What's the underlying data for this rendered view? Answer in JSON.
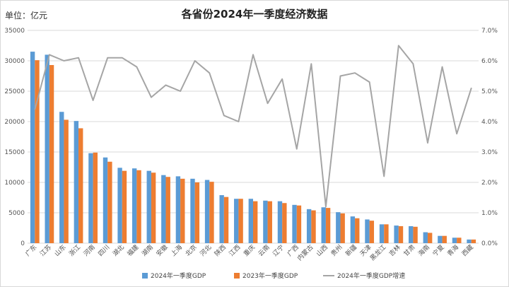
{
  "header": {
    "unit": "单位：亿元",
    "title": "各省份2024年一季度经济数据"
  },
  "colors": {
    "gdp2024": "#5b9bd5",
    "gdp2023": "#ed7d31",
    "growth": "#a5a5a5",
    "grid": "#d9d9d9"
  },
  "chart_data": {
    "type": "bar",
    "title": "各省份2024年一季度经济数据",
    "categories": [
      "广东",
      "江苏",
      "山东",
      "浙江",
      "河南",
      "四川",
      "湖北",
      "福建",
      "湖南",
      "安徽",
      "上海",
      "北京",
      "河北",
      "陕西",
      "江西",
      "重庆",
      "云南",
      "辽宁",
      "广西",
      "内蒙古",
      "山西",
      "贵州",
      "新疆",
      "天津",
      "黑龙江",
      "吉林",
      "甘肃",
      "海南",
      "宁夏",
      "青海",
      "西藏"
    ],
    "series": [
      {
        "name": "2024年一季度GDP",
        "axis": "left",
        "type": "bar",
        "values": [
          31500,
          31000,
          21600,
          20100,
          14800,
          14100,
          12400,
          12300,
          11900,
          11200,
          11000,
          10600,
          10400,
          7900,
          7300,
          7300,
          7000,
          6900,
          6300,
          5600,
          5900,
          5100,
          4400,
          3900,
          3100,
          2900,
          2800,
          1800,
          1200,
          900,
          600
        ]
      },
      {
        "name": "2023年一季度GDP",
        "axis": "right_gdp",
        "type": "bar",
        "values": [
          30100,
          29300,
          20300,
          18900,
          14900,
          13400,
          11900,
          12000,
          11600,
          10900,
          10600,
          10000,
          10100,
          7600,
          7300,
          6900,
          6900,
          6600,
          6200,
          5400,
          5800,
          4900,
          4100,
          3700,
          3100,
          2800,
          2700,
          1700,
          1200,
          900,
          600
        ]
      },
      {
        "name": "2024年一季度GDP增速",
        "axis": "right",
        "type": "line",
        "values": [
          4.4,
          6.2,
          6.0,
          6.1,
          4.7,
          6.1,
          6.1,
          5.8,
          4.8,
          5.2,
          5.0,
          6.0,
          5.6,
          4.2,
          4.0,
          6.2,
          4.6,
          5.4,
          3.1,
          5.9,
          1.2,
          5.5,
          5.6,
          5.3,
          2.2,
          6.5,
          5.9,
          3.3,
          5.8,
          3.6,
          5.1
        ]
      }
    ],
    "y_left": {
      "min": 0,
      "max": 35000,
      "ticks": [
        0,
        5000,
        10000,
        15000,
        20000,
        25000,
        30000,
        35000
      ]
    },
    "y_right": {
      "min": 0,
      "max": 7,
      "ticks": [
        "0.0%",
        "1.0%",
        "2.0%",
        "3.0%",
        "4.0%",
        "5.0%",
        "6.0%",
        "7.0%"
      ]
    },
    "grid": true,
    "legend_position": "bottom"
  }
}
